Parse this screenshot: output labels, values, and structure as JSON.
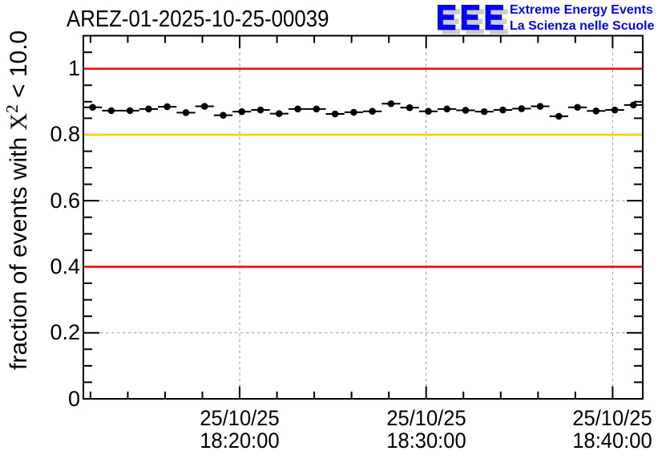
{
  "page": {
    "background": "#ffffff"
  },
  "header": {
    "logo": {
      "letters": "EEE",
      "line1": "Extreme Energy Events",
      "line2": "La Scienza nelle Scuole",
      "letter_color": "#0404f5",
      "shadow_color": "#cccccc",
      "text_color": "#0404f5"
    }
  },
  "chart_data": {
    "type": "scatter",
    "title": "AREZ-01-2025-10-25-00039",
    "ylabel": {
      "prefix": "fraction of events with ",
      "variable": "X",
      "superscript": "2",
      "suffix": " < 10.0"
    },
    "xlabel": "",
    "x_range": [
      "18:11:37",
      "18:41:37"
    ],
    "ylim": [
      0,
      1.1
    ],
    "y_major_ticks": [
      {
        "value": 0.0,
        "label": "0"
      },
      {
        "value": 0.2,
        "label": "0.2"
      },
      {
        "value": 0.4,
        "label": "0.4"
      },
      {
        "value": 0.6,
        "label": "0.6"
      },
      {
        "value": 0.8,
        "label": "0.8"
      },
      {
        "value": 1.0,
        "label": "1"
      }
    ],
    "y_minor_step": 0.05,
    "x_major_ticks": [
      {
        "date": "25/10/25",
        "time": "18:20:00"
      },
      {
        "date": "25/10/25",
        "time": "18:30:00"
      },
      {
        "date": "25/10/25",
        "time": "18:40:00"
      }
    ],
    "x_minor_step_seconds": 120,
    "grid": true,
    "grid_color": "#999999",
    "axis_color": "#000000",
    "reference_lines": [
      {
        "y": 1.0,
        "color": "#ff0000"
      },
      {
        "y": 0.8,
        "color": "#ffcc00"
      },
      {
        "y": 0.4,
        "color": "#ff0000"
      }
    ],
    "series": [
      {
        "name": "fraction of events with chi2 below cut",
        "marker": "filled-circle",
        "color": "#000000",
        "x_error_seconds": 30,
        "points": [
          {
            "t": "18:12:07",
            "y": 0.883
          },
          {
            "t": "18:13:07",
            "y": 0.873
          },
          {
            "t": "18:14:07",
            "y": 0.873
          },
          {
            "t": "18:15:07",
            "y": 0.878
          },
          {
            "t": "18:16:07",
            "y": 0.885
          },
          {
            "t": "18:17:07",
            "y": 0.867
          },
          {
            "t": "18:18:07",
            "y": 0.886
          },
          {
            "t": "18:19:07",
            "y": 0.859
          },
          {
            "t": "18:20:07",
            "y": 0.87
          },
          {
            "t": "18:21:07",
            "y": 0.875
          },
          {
            "t": "18:22:07",
            "y": 0.864
          },
          {
            "t": "18:23:07",
            "y": 0.878
          },
          {
            "t": "18:24:07",
            "y": 0.878
          },
          {
            "t": "18:25:07",
            "y": 0.863
          },
          {
            "t": "18:26:07",
            "y": 0.868
          },
          {
            "t": "18:27:07",
            "y": 0.871
          },
          {
            "t": "18:28:07",
            "y": 0.894
          },
          {
            "t": "18:29:07",
            "y": 0.882
          },
          {
            "t": "18:30:07",
            "y": 0.871
          },
          {
            "t": "18:31:07",
            "y": 0.878
          },
          {
            "t": "18:32:07",
            "y": 0.874
          },
          {
            "t": "18:33:07",
            "y": 0.87
          },
          {
            "t": "18:34:07",
            "y": 0.875
          },
          {
            "t": "18:35:07",
            "y": 0.879
          },
          {
            "t": "18:36:07",
            "y": 0.886
          },
          {
            "t": "18:37:07",
            "y": 0.856
          },
          {
            "t": "18:38:07",
            "y": 0.883
          },
          {
            "t": "18:39:07",
            "y": 0.872
          },
          {
            "t": "18:40:07",
            "y": 0.875
          },
          {
            "t": "18:41:07",
            "y": 0.89
          }
        ]
      }
    ]
  }
}
